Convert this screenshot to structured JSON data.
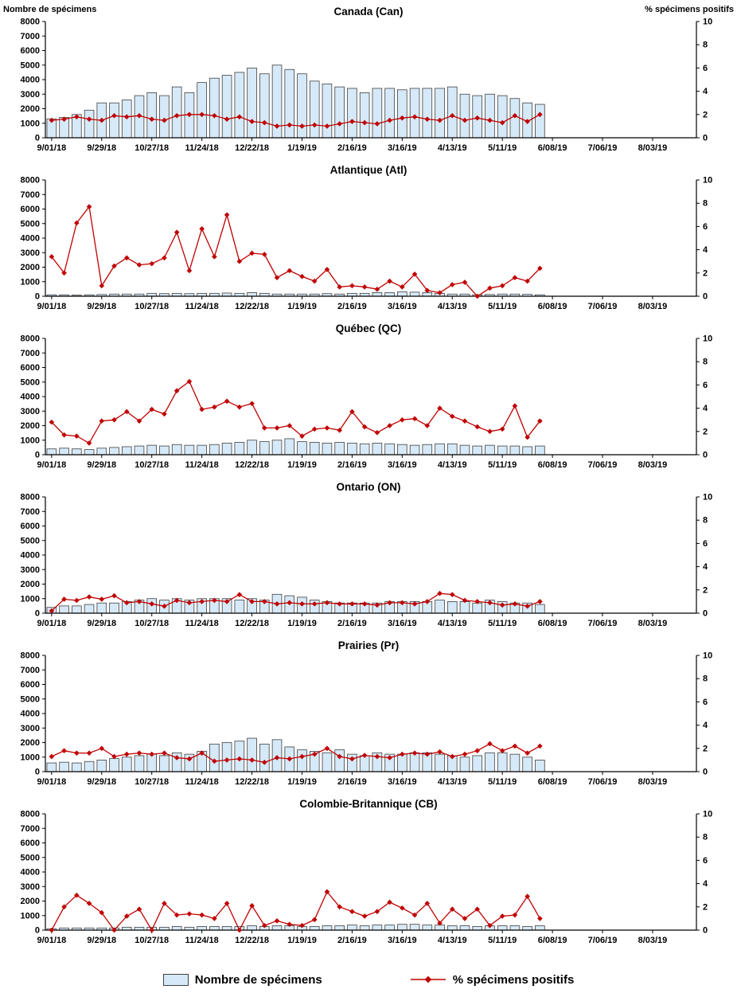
{
  "headers": {
    "left": "Nombre de spécimens",
    "right": "% spécimens positifs"
  },
  "legend": {
    "bars_label": "Nombre de spécimens",
    "line_label": "% spécimens positifs"
  },
  "colors": {
    "bar_fill": "#d6e9f8",
    "bar_stroke": "#404040",
    "line": "#c00000"
  },
  "y_axis": {
    "left_ticks": [
      0,
      1000,
      2000,
      3000,
      4000,
      5000,
      6000,
      7000,
      8000
    ],
    "right_ticks": [
      0,
      2,
      4,
      6,
      8,
      10
    ]
  },
  "x_axis": {
    "total_slots": 52,
    "tick_slot_step": 4,
    "tick_labels": [
      "9/01/18",
      "9/29/18",
      "10/27/18",
      "11/24/18",
      "12/22/18",
      "1/19/19",
      "2/16/19",
      "3/16/19",
      "4/13/19",
      "5/11/19",
      "6/08/19",
      "7/06/19",
      "8/03/19"
    ],
    "dates": [
      "9/01/18",
      "9/08/18",
      "9/15/18",
      "9/22/18",
      "9/29/18",
      "10/06/18",
      "10/13/18",
      "10/20/18",
      "10/27/18",
      "11/03/18",
      "11/10/18",
      "11/17/18",
      "11/24/18",
      "12/01/18",
      "12/08/18",
      "12/15/18",
      "12/22/18",
      "12/29/18",
      "1/05/19",
      "1/12/19",
      "1/19/19",
      "1/26/19",
      "2/02/19",
      "2/09/19",
      "2/16/19",
      "2/23/19",
      "3/02/19",
      "3/09/19",
      "3/16/19",
      "3/23/19",
      "3/30/19",
      "4/06/19",
      "4/13/19",
      "4/20/19",
      "4/27/19",
      "5/04/19",
      "5/11/19",
      "5/18/19",
      "5/25/19",
      "6/01/19"
    ]
  },
  "chart_data": [
    {
      "type": "bar",
      "title": "Canada (Can)",
      "ylabel_left": "Nombre de spécimens",
      "ylabel_right": "% spécimens positifs",
      "ylim_left": [
        0,
        8000
      ],
      "ylim_right": [
        0,
        10
      ],
      "bars": [
        1300,
        1400,
        1600,
        1900,
        2400,
        2400,
        2600,
        2900,
        3100,
        2900,
        3500,
        3100,
        3800,
        4100,
        4300,
        4500,
        4800,
        4400,
        5000,
        4700,
        4400,
        3900,
        3700,
        3500,
        3400,
        3100,
        3400,
        3400,
        3300,
        3400,
        3400,
        3400,
        3500,
        3000,
        2900,
        3000,
        2900,
        2700,
        2400,
        2300
      ],
      "pct": [
        1.5,
        1.6,
        1.8,
        1.6,
        1.5,
        1.9,
        1.8,
        1.9,
        1.6,
        1.5,
        1.9,
        2.0,
        2.0,
        1.9,
        1.6,
        1.8,
        1.4,
        1.3,
        1.0,
        1.1,
        1.0,
        1.1,
        1.0,
        1.2,
        1.4,
        1.3,
        1.2,
        1.5,
        1.7,
        1.8,
        1.6,
        1.5,
        1.9,
        1.5,
        1.7,
        1.5,
        1.3,
        1.9,
        1.4,
        2.0
      ]
    },
    {
      "type": "bar",
      "title": "Atlantique (Atl)",
      "ylim_left": [
        0,
        8000
      ],
      "ylim_right": [
        0,
        10
      ],
      "bars": [
        100,
        100,
        80,
        100,
        120,
        150,
        150,
        150,
        200,
        180,
        200,
        180,
        200,
        200,
        220,
        200,
        250,
        200,
        150,
        150,
        150,
        150,
        180,
        150,
        200,
        200,
        250,
        250,
        300,
        280,
        250,
        200,
        150,
        150,
        100,
        120,
        150,
        150,
        130,
        100
      ],
      "pct": [
        3.4,
        2.0,
        6.3,
        7.7,
        0.9,
        2.6,
        3.3,
        2.7,
        2.8,
        3.3,
        5.5,
        2.2,
        5.8,
        3.4,
        7.0,
        3.0,
        3.7,
        3.6,
        1.6,
        2.2,
        1.7,
        1.3,
        2.3,
        0.8,
        0.9,
        0.8,
        0.6,
        1.3,
        0.8,
        1.9,
        0.5,
        0.3,
        1.0,
        1.2,
        0.0,
        0.7,
        0.9,
        1.6,
        1.3,
        2.4
      ]
    },
    {
      "type": "bar",
      "title": "Québec (QC)",
      "ylim_left": [
        0,
        8000
      ],
      "ylim_right": [
        0,
        10
      ],
      "bars": [
        400,
        450,
        400,
        350,
        450,
        500,
        550,
        600,
        650,
        600,
        700,
        650,
        650,
        700,
        800,
        850,
        1000,
        900,
        1000,
        1100,
        900,
        850,
        800,
        850,
        800,
        750,
        800,
        750,
        700,
        650,
        700,
        750,
        750,
        650,
        600,
        650,
        600,
        600,
        550,
        600
      ],
      "pct": [
        2.8,
        1.7,
        1.6,
        1.0,
        2.9,
        3.0,
        3.7,
        2.9,
        3.9,
        3.5,
        5.5,
        6.3,
        3.9,
        4.1,
        4.6,
        4.1,
        4.4,
        2.3,
        2.3,
        2.5,
        1.6,
        2.2,
        2.3,
        2.1,
        3.7,
        2.4,
        1.9,
        2.5,
        3.0,
        3.1,
        2.5,
        4.0,
        3.3,
        2.9,
        2.4,
        2.0,
        2.2,
        4.2,
        1.5,
        2.9
      ]
    },
    {
      "type": "bar",
      "title": "Ontario (ON)",
      "ylim_left": [
        0,
        8000
      ],
      "ylim_right": [
        0,
        10
      ],
      "bars": [
        400,
        500,
        500,
        600,
        700,
        700,
        800,
        900,
        1000,
        900,
        1000,
        900,
        1000,
        1000,
        1000,
        900,
        1000,
        900,
        1300,
        1200,
        1100,
        900,
        800,
        700,
        700,
        700,
        700,
        800,
        800,
        800,
        800,
        900,
        800,
        800,
        700,
        900,
        800,
        700,
        700,
        600
      ],
      "pct": [
        0.2,
        1.2,
        1.1,
        1.4,
        1.2,
        1.5,
        0.9,
        1.0,
        0.8,
        0.6,
        1.1,
        0.9,
        1.0,
        1.1,
        1.0,
        1.6,
        1.0,
        1.0,
        0.8,
        0.9,
        0.8,
        0.8,
        0.9,
        0.8,
        0.8,
        0.8,
        0.7,
        0.9,
        0.9,
        0.8,
        1.0,
        1.7,
        1.6,
        1.1,
        1.0,
        0.9,
        0.7,
        0.8,
        0.6,
        1.0
      ]
    },
    {
      "type": "bar",
      "title": "Prairies (Pr)",
      "ylim_left": [
        0,
        8000
      ],
      "ylim_right": [
        0,
        10
      ],
      "bars": [
        600,
        650,
        600,
        700,
        800,
        900,
        1000,
        1100,
        1200,
        1100,
        1300,
        1200,
        1400,
        1900,
        2000,
        2100,
        2300,
        1900,
        2200,
        1700,
        1500,
        1400,
        1300,
        1500,
        1200,
        1100,
        1300,
        1200,
        1200,
        1300,
        1300,
        1200,
        1100,
        1000,
        1100,
        1300,
        1300,
        1200,
        1000,
        800
      ],
      "pct": [
        1.3,
        1.8,
        1.6,
        1.6,
        2.0,
        1.3,
        1.5,
        1.6,
        1.5,
        1.6,
        1.2,
        1.1,
        1.6,
        0.9,
        1.0,
        1.1,
        1.0,
        0.8,
        1.2,
        1.1,
        1.3,
        1.5,
        2.0,
        1.3,
        1.1,
        1.4,
        1.3,
        1.2,
        1.5,
        1.6,
        1.5,
        1.7,
        1.3,
        1.5,
        1.8,
        2.4,
        1.8,
        2.2,
        1.6,
        2.2
      ]
    },
    {
      "type": "bar",
      "title": "Colombie-Britannique (CB)",
      "ylim_left": [
        0,
        8000
      ],
      "ylim_right": [
        0,
        10
      ],
      "bars": [
        100,
        150,
        150,
        150,
        150,
        150,
        200,
        200,
        200,
        200,
        250,
        200,
        250,
        250,
        250,
        250,
        300,
        250,
        300,
        300,
        250,
        250,
        300,
        300,
        350,
        300,
        350,
        350,
        400,
        400,
        350,
        350,
        300,
        300,
        250,
        300,
        300,
        300,
        250,
        300
      ],
      "pct": [
        0.0,
        2.0,
        3.0,
        2.3,
        1.5,
        0.0,
        1.2,
        1.8,
        0.0,
        2.3,
        1.3,
        1.4,
        1.3,
        1.0,
        2.3,
        0.0,
        2.1,
        0.4,
        0.8,
        0.5,
        0.4,
        0.9,
        3.3,
        2.0,
        1.6,
        1.2,
        1.6,
        2.4,
        1.9,
        1.3,
        2.3,
        0.6,
        1.8,
        1.0,
        1.8,
        0.4,
        1.2,
        1.3,
        2.9,
        1.0
      ]
    }
  ]
}
